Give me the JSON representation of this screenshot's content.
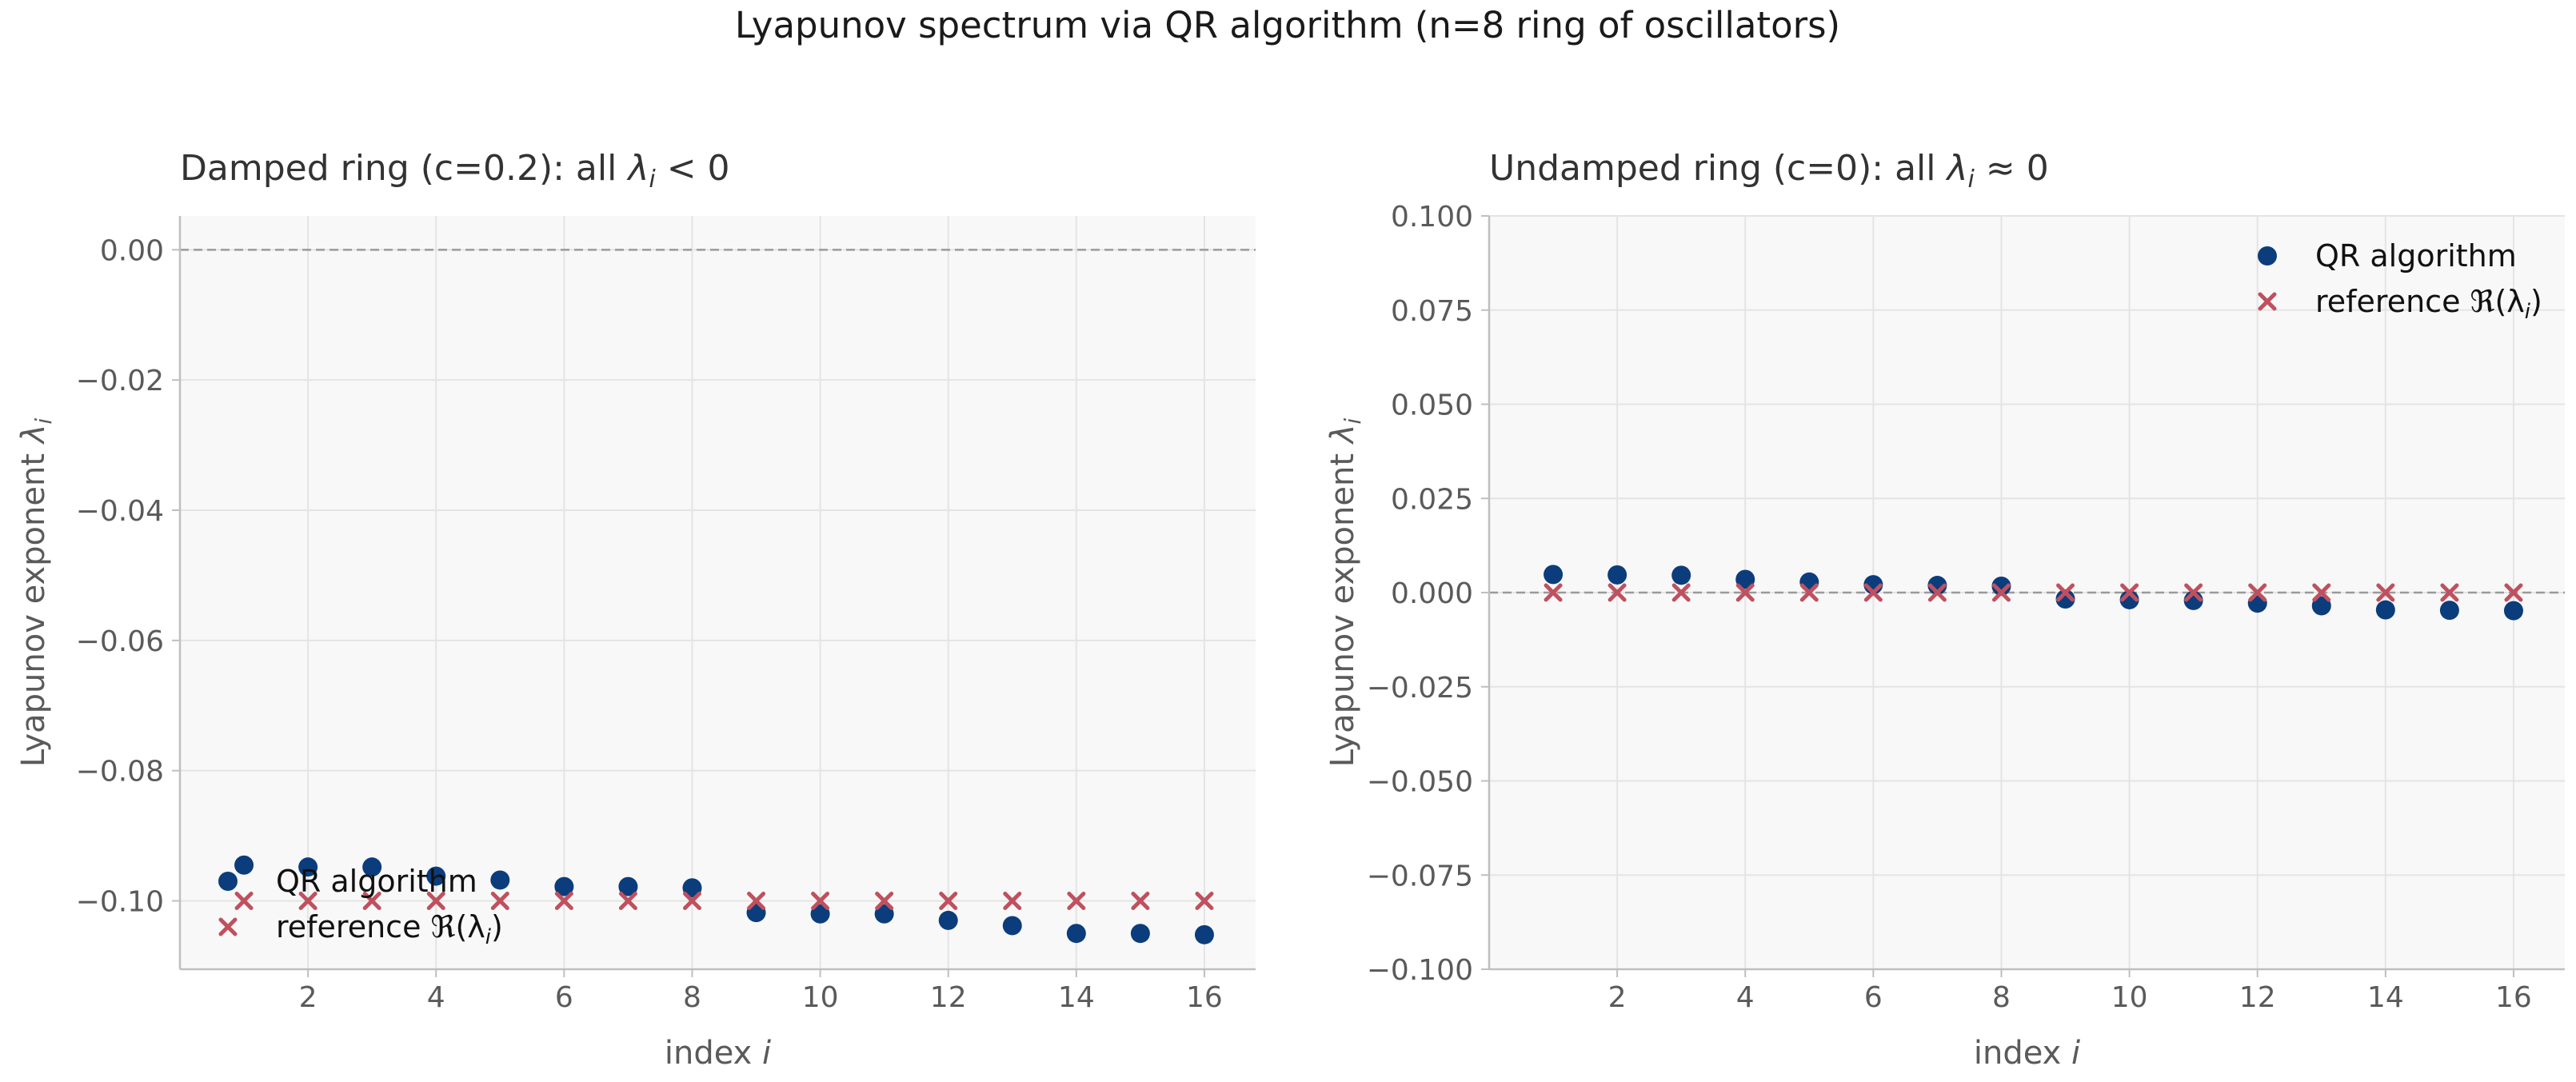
{
  "figure": {
    "suptitle": "Lyapunov spectrum via QR algorithm (n=8 ring of oscillators)"
  },
  "colors": {
    "qr": "#0b3d7d",
    "reference": "#c0505e",
    "axes_bg": "#f8f8f8",
    "grid": "#e4e4e4",
    "spine": "#bfbfbf",
    "tick_text": "#5a5a5a",
    "dashed_zero": "#9a9a9a"
  },
  "chart_data": [
    {
      "type": "scatter",
      "title_prefix": "Damped ring (c=0.2): all ",
      "title_suffix": " < 0",
      "xlabel": "index",
      "xlabel_var": "i",
      "ylabel": "Lyapunov exponent",
      "ylabel_var": "i",
      "xlim": [
        0.0,
        16.8
      ],
      "ylim": [
        -0.1105,
        0.0052
      ],
      "xticks": [
        2,
        4,
        6,
        8,
        10,
        12,
        14,
        16
      ],
      "yticks": [
        0.0,
        -0.02,
        -0.04,
        -0.06,
        -0.08,
        -0.1
      ],
      "ytick_labels": [
        "0.00",
        "−0.02",
        "−0.04",
        "−0.06",
        "−0.08",
        "−0.10"
      ],
      "zero_line": 0.0,
      "grid": true,
      "legend_position": "lower-left",
      "series": [
        {
          "name": "QR algorithm",
          "marker": "circle",
          "x": [
            1,
            2,
            3,
            4,
            5,
            6,
            7,
            8,
            9,
            10,
            11,
            12,
            13,
            14,
            15,
            16
          ],
          "y": [
            -0.0945,
            -0.0948,
            -0.0948,
            -0.0962,
            -0.0968,
            -0.0978,
            -0.0978,
            -0.098,
            -0.1018,
            -0.102,
            -0.102,
            -0.103,
            -0.1038,
            -0.105,
            -0.105,
            -0.1052
          ]
        },
        {
          "name": "reference ",
          "name_math": "ℜ(λ",
          "name_math_sub": "i",
          "name_math_close": ")",
          "marker": "x",
          "x": [
            1,
            2,
            3,
            4,
            5,
            6,
            7,
            8,
            9,
            10,
            11,
            12,
            13,
            14,
            15,
            16
          ],
          "y": [
            -0.1,
            -0.1,
            -0.1,
            -0.1,
            -0.1,
            -0.1,
            -0.1,
            -0.1,
            -0.1,
            -0.1,
            -0.1,
            -0.1,
            -0.1,
            -0.1,
            -0.1,
            -0.1
          ]
        }
      ]
    },
    {
      "type": "scatter",
      "title_prefix": "Undamped ring (c=0): all ",
      "title_suffix": " ≈ 0",
      "xlabel": "index",
      "xlabel_var": "i",
      "ylabel": "Lyapunov exponent",
      "ylabel_var": "i",
      "xlim": [
        0.0,
        16.8
      ],
      "ylim": [
        -0.1,
        0.1
      ],
      "xticks": [
        2,
        4,
        6,
        8,
        10,
        12,
        14,
        16
      ],
      "yticks": [
        0.1,
        0.075,
        0.05,
        0.025,
        0.0,
        -0.025,
        -0.05,
        -0.075,
        -0.1
      ],
      "ytick_labels": [
        "0.100",
        "0.075",
        "0.050",
        "0.025",
        "0.000",
        "−0.025",
        "−0.050",
        "−0.075",
        "−0.100"
      ],
      "zero_line": 0.0,
      "grid": true,
      "legend_position": "upper-right",
      "series": [
        {
          "name": "QR algorithm",
          "marker": "circle",
          "x": [
            1,
            2,
            3,
            4,
            5,
            6,
            7,
            8,
            9,
            10,
            11,
            12,
            13,
            14,
            15,
            16
          ],
          "y": [
            0.0048,
            0.0047,
            0.0046,
            0.0035,
            0.0028,
            0.0021,
            0.0019,
            0.0017,
            -0.0017,
            -0.0019,
            -0.0021,
            -0.0028,
            -0.0035,
            -0.0046,
            -0.0047,
            -0.0048
          ]
        },
        {
          "name": "reference ",
          "name_math": "ℜ(λ",
          "name_math_sub": "i",
          "name_math_close": ")",
          "marker": "x",
          "x": [
            1,
            2,
            3,
            4,
            5,
            6,
            7,
            8,
            9,
            10,
            11,
            12,
            13,
            14,
            15,
            16
          ],
          "y": [
            0,
            0,
            0,
            0,
            0,
            0,
            0,
            0,
            0,
            0,
            0,
            0,
            0,
            0,
            0,
            0
          ]
        }
      ]
    }
  ]
}
